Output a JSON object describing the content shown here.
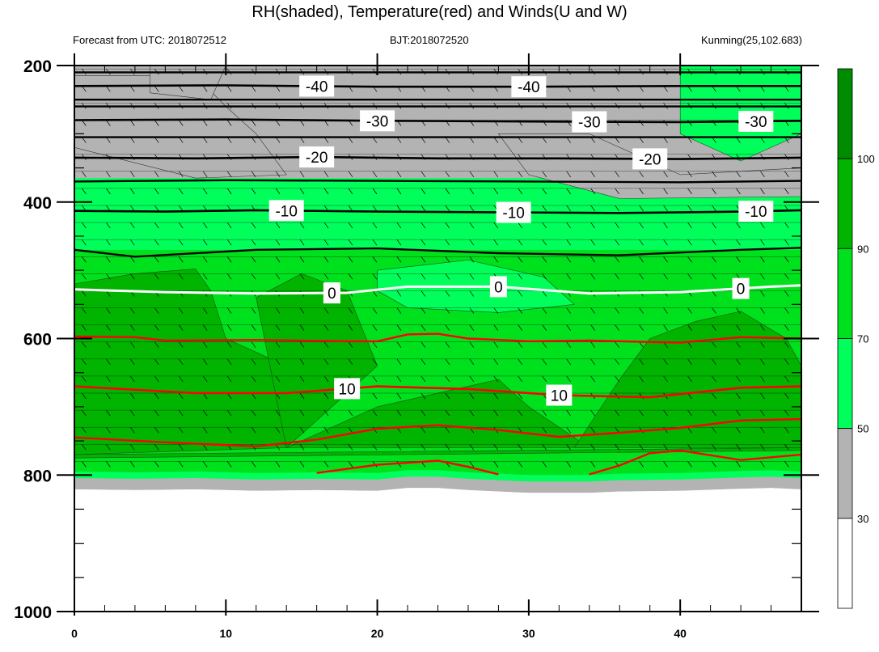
{
  "chart_data": {
    "type": "heatmap",
    "title": "RH(shaded), Temperature(red) and Winds(U and W)",
    "subtitle_left": "Forecast from UTC: 2018072512",
    "subtitle_center": "BJT:2018072520",
    "subtitle_right": "Kunming(25,102.683)",
    "xlim": [
      0,
      48
    ],
    "ylim": [
      1000,
      200
    ],
    "x_ticks": [
      0,
      10,
      20,
      30,
      40
    ],
    "y_ticks": [
      200,
      400,
      600,
      800,
      1000
    ],
    "colorbar": {
      "levels": [
        30,
        50,
        70,
        90,
        100
      ],
      "labels": [
        "30",
        "50",
        "70",
        "90",
        "100"
      ],
      "colors": [
        "#ffffff",
        "#b3b3b3",
        "#00ff5a",
        "#00e11e",
        "#00b400",
        "#008c00"
      ]
    },
    "ground_level": [
      [
        0,
        795
      ],
      [
        4,
        796
      ],
      [
        8,
        795
      ],
      [
        12,
        797
      ],
      [
        16,
        796
      ],
      [
        20,
        797
      ],
      [
        22,
        793
      ],
      [
        24,
        793
      ],
      [
        26,
        796
      ],
      [
        30,
        800
      ],
      [
        34,
        800
      ],
      [
        36,
        798
      ],
      [
        40,
        797
      ],
      [
        44,
        794
      ],
      [
        46,
        793
      ],
      [
        48,
        795
      ]
    ],
    "temperature_isotherms": [
      {
        "value": -40,
        "label": "-40",
        "color": "#000000",
        "points": [
          [
            0,
            230
          ],
          [
            10,
            229
          ],
          [
            20,
            231
          ],
          [
            30,
            231
          ],
          [
            40,
            230
          ],
          [
            48,
            230
          ]
        ],
        "label_x": [
          16,
          30
        ]
      },
      {
        "value": -30,
        "label": "-30",
        "color": "#000000",
        "points": [
          [
            0,
            280
          ],
          [
            10,
            279
          ],
          [
            20,
            281
          ],
          [
            30,
            282
          ],
          [
            40,
            283
          ],
          [
            48,
            281
          ]
        ],
        "label_x": [
          20,
          34,
          45
        ]
      },
      {
        "value": -20,
        "label": "-20",
        "color": "#000000",
        "points": [
          [
            0,
            335
          ],
          [
            8,
            336
          ],
          [
            16,
            334
          ],
          [
            24,
            336
          ],
          [
            32,
            336
          ],
          [
            40,
            337
          ],
          [
            48,
            335
          ]
        ],
        "label_x": [
          16,
          38
        ]
      },
      {
        "value": -10,
        "label": "-10",
        "color": "#000000",
        "points": [
          [
            0,
            413
          ],
          [
            6,
            414
          ],
          [
            12,
            412
          ],
          [
            20,
            414
          ],
          [
            28,
            415
          ],
          [
            36,
            416
          ],
          [
            44,
            414
          ],
          [
            48,
            412
          ]
        ],
        "label_x": [
          14,
          29,
          45
        ]
      },
      {
        "value": 0,
        "label": "0",
        "color": "#ffffff",
        "points": [
          [
            0,
            528
          ],
          [
            6,
            532
          ],
          [
            12,
            534
          ],
          [
            18,
            533
          ],
          [
            22,
            524
          ],
          [
            28,
            524
          ],
          [
            34,
            534
          ],
          [
            40,
            532
          ],
          [
            46,
            524
          ],
          [
            48,
            522
          ]
        ],
        "label_x": [
          17,
          28,
          44
        ]
      },
      {
        "value": 10,
        "label": "10",
        "color": "#ff0000",
        "points": [
          [
            0,
            670
          ],
          [
            8,
            680
          ],
          [
            14,
            680
          ],
          [
            20,
            670
          ],
          [
            26,
            674
          ],
          [
            32,
            683
          ],
          [
            38,
            686
          ],
          [
            44,
            672
          ],
          [
            48,
            670
          ]
        ],
        "label_x": [
          18,
          32
        ]
      }
    ],
    "red_isotherms": [
      [
        [
          0,
          597
        ],
        [
          4,
          598
        ],
        [
          6,
          603
        ],
        [
          12,
          602
        ],
        [
          18,
          604
        ],
        [
          20,
          604
        ],
        [
          22,
          594
        ],
        [
          24,
          593
        ],
        [
          26,
          600
        ],
        [
          30,
          604
        ],
        [
          34,
          603
        ],
        [
          40,
          606
        ],
        [
          44,
          598
        ],
        [
          48,
          600
        ]
      ],
      [
        [
          0,
          745
        ],
        [
          6,
          752
        ],
        [
          12,
          758
        ],
        [
          16,
          748
        ],
        [
          20,
          732
        ],
        [
          24,
          727
        ],
        [
          28,
          734
        ],
        [
          32,
          744
        ],
        [
          36,
          738
        ],
        [
          40,
          731
        ],
        [
          44,
          720
        ],
        [
          48,
          718
        ]
      ],
      [
        [
          16,
          797
        ],
        [
          20,
          785
        ],
        [
          24,
          779
        ],
        [
          26,
          788
        ],
        [
          28,
          799
        ]
      ],
      [
        [
          34,
          799
        ],
        [
          36,
          786
        ],
        [
          38,
          768
        ],
        [
          40,
          764
        ],
        [
          44,
          778
        ],
        [
          48,
          770
        ]
      ]
    ],
    "black_isotherms_extra": [
      [
        [
          0,
          210
        ],
        [
          48,
          210
        ]
      ],
      [
        [
          0,
          250
        ],
        [
          48,
          250
        ]
      ],
      [
        [
          0,
          260
        ],
        [
          48,
          260
        ]
      ],
      [
        [
          0,
          305
        ],
        [
          48,
          305
        ]
      ],
      [
        [
          0,
          370
        ],
        [
          10,
          368
        ],
        [
          20,
          369
        ],
        [
          30,
          370
        ],
        [
          40,
          371
        ],
        [
          48,
          369
        ]
      ],
      [
        [
          0,
          470
        ],
        [
          4,
          480
        ],
        [
          12,
          470
        ],
        [
          20,
          468
        ],
        [
          28,
          475
        ],
        [
          36,
          478
        ],
        [
          44,
          470
        ],
        [
          48,
          467
        ]
      ]
    ]
  }
}
